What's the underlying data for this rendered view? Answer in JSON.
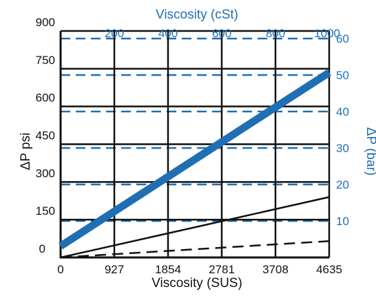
{
  "colors": {
    "primary_axis": "#111111",
    "secondary_axis": "#1f6fb2",
    "grid": "#111111",
    "bar_gridlines": "#1f6fb2"
  },
  "chart_data": {
    "type": "line",
    "xlabel": "Viscosity (SUS)",
    "ylabel": "ΔP psi",
    "x2label": "Viscosity (cSt)",
    "y2label": "ΔP (bar)",
    "xlim": [
      0,
      4635
    ],
    "ylim": [
      0,
      900
    ],
    "x2lim": [
      0,
      1000
    ],
    "y2lim": [
      0,
      62.07
    ],
    "x_ticks": [
      0,
      927,
      1854,
      2781,
      3708,
      4635
    ],
    "x_tick_labels": [
      "0",
      "927",
      "1854",
      "2781",
      "3708",
      "4635"
    ],
    "y_ticks": [
      0,
      150,
      300,
      450,
      600,
      750,
      900
    ],
    "y_tick_labels": [
      "0",
      "150",
      "300",
      "450",
      "600",
      "750",
      "900"
    ],
    "x2_ticks": [
      200,
      400,
      600,
      800,
      1000
    ],
    "x2_tick_labels": [
      "200",
      "400",
      "600",
      "800",
      "1000"
    ],
    "y2_ticks": [
      10,
      20,
      30,
      40,
      50,
      60
    ],
    "y2_tick_labels": [
      "10",
      "20",
      "30",
      "40",
      "50",
      "60"
    ],
    "grid": true,
    "series": [
      {
        "x": [
          0,
          4635
        ],
        "y": [
          45,
          735
        ],
        "color": "#1f6fb2",
        "style": "solid-thick"
      },
      {
        "x": [
          0,
          4635
        ],
        "y": [
          0,
          240
        ],
        "color": "#111111",
        "style": "solid"
      },
      {
        "x": [
          0,
          4635
        ],
        "y": [
          0,
          65
        ],
        "color": "#111111",
        "style": "dashed"
      }
    ]
  }
}
